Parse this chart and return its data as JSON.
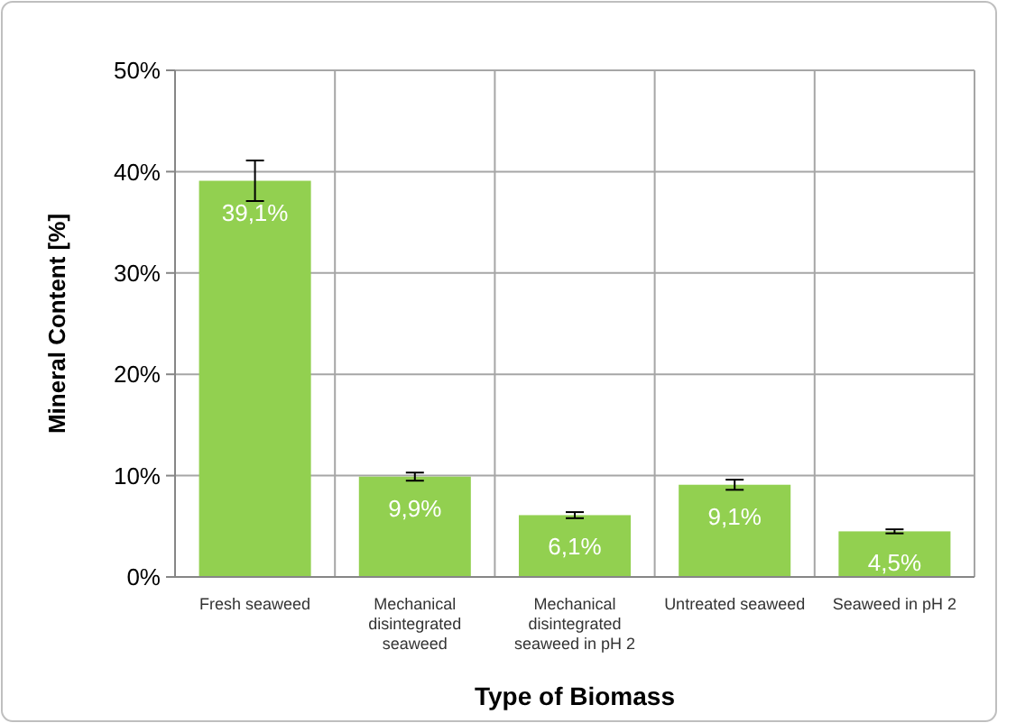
{
  "chart_data": {
    "type": "bar",
    "xlabel": "Type of Biomass",
    "ylabel": "Mineral Content [%]",
    "categories": [
      "Fresh seaweed",
      "Mechanical disintegrated seaweed",
      "Mechanical disintegrated seaweed in pH 2",
      "Untreated seaweed",
      "Seaweed in pH 2"
    ],
    "values": [
      39.1,
      9.9,
      6.1,
      9.1,
      4.5
    ],
    "errors": [
      2,
      0.4,
      0.3,
      0.5,
      0.2
    ],
    "value_labels": [
      "39,1%",
      "9,9%",
      "6,1%",
      "9,1%",
      "4,5%"
    ],
    "color": "#92d050",
    "ylim": [
      0,
      50
    ],
    "yticks": [
      {
        "value": 0,
        "label": "0%"
      },
      {
        "value": 10,
        "label": "10%"
      },
      {
        "value": 20,
        "label": "20%"
      },
      {
        "value": 30,
        "label": "30%"
      },
      {
        "value": 40,
        "label": "40%"
      },
      {
        "value": 50,
        "label": "50%"
      }
    ],
    "grid": true
  }
}
